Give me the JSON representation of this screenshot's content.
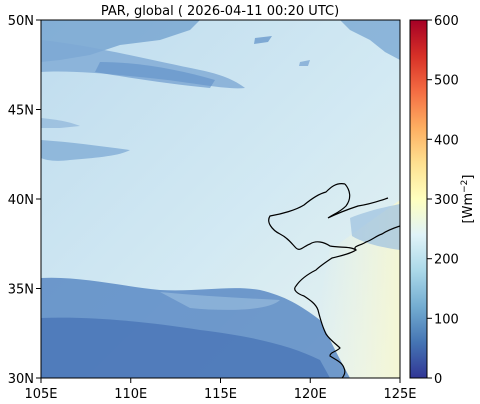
{
  "title": "PAR, global ( 2026-04-11 00:20 UTC)",
  "colorbar": {
    "label_main": "[Wm",
    "label_exp": "−2",
    "label_end": "]",
    "ticks": [
      "0",
      "100",
      "200",
      "300",
      "400",
      "500",
      "600"
    ],
    "range": [
      0,
      600
    ],
    "colormap": "RdYlBu_r",
    "colors": [
      "#313695",
      "#4575b4",
      "#74add1",
      "#abd9e9",
      "#e0f3f8",
      "#ffffbf",
      "#fee090",
      "#fdae61",
      "#f46d43",
      "#d73027",
      "#a50026"
    ]
  },
  "map": {
    "extent": {
      "lon": [
        105,
        125
      ],
      "lat": [
        30,
        50
      ]
    },
    "x_ticks": [
      "105E",
      "110E",
      "115E",
      "120E",
      "125E"
    ],
    "y_ticks": [
      "30N",
      "35N",
      "40N",
      "45N",
      "50N"
    ],
    "background_color": "#c9e3ef"
  }
}
